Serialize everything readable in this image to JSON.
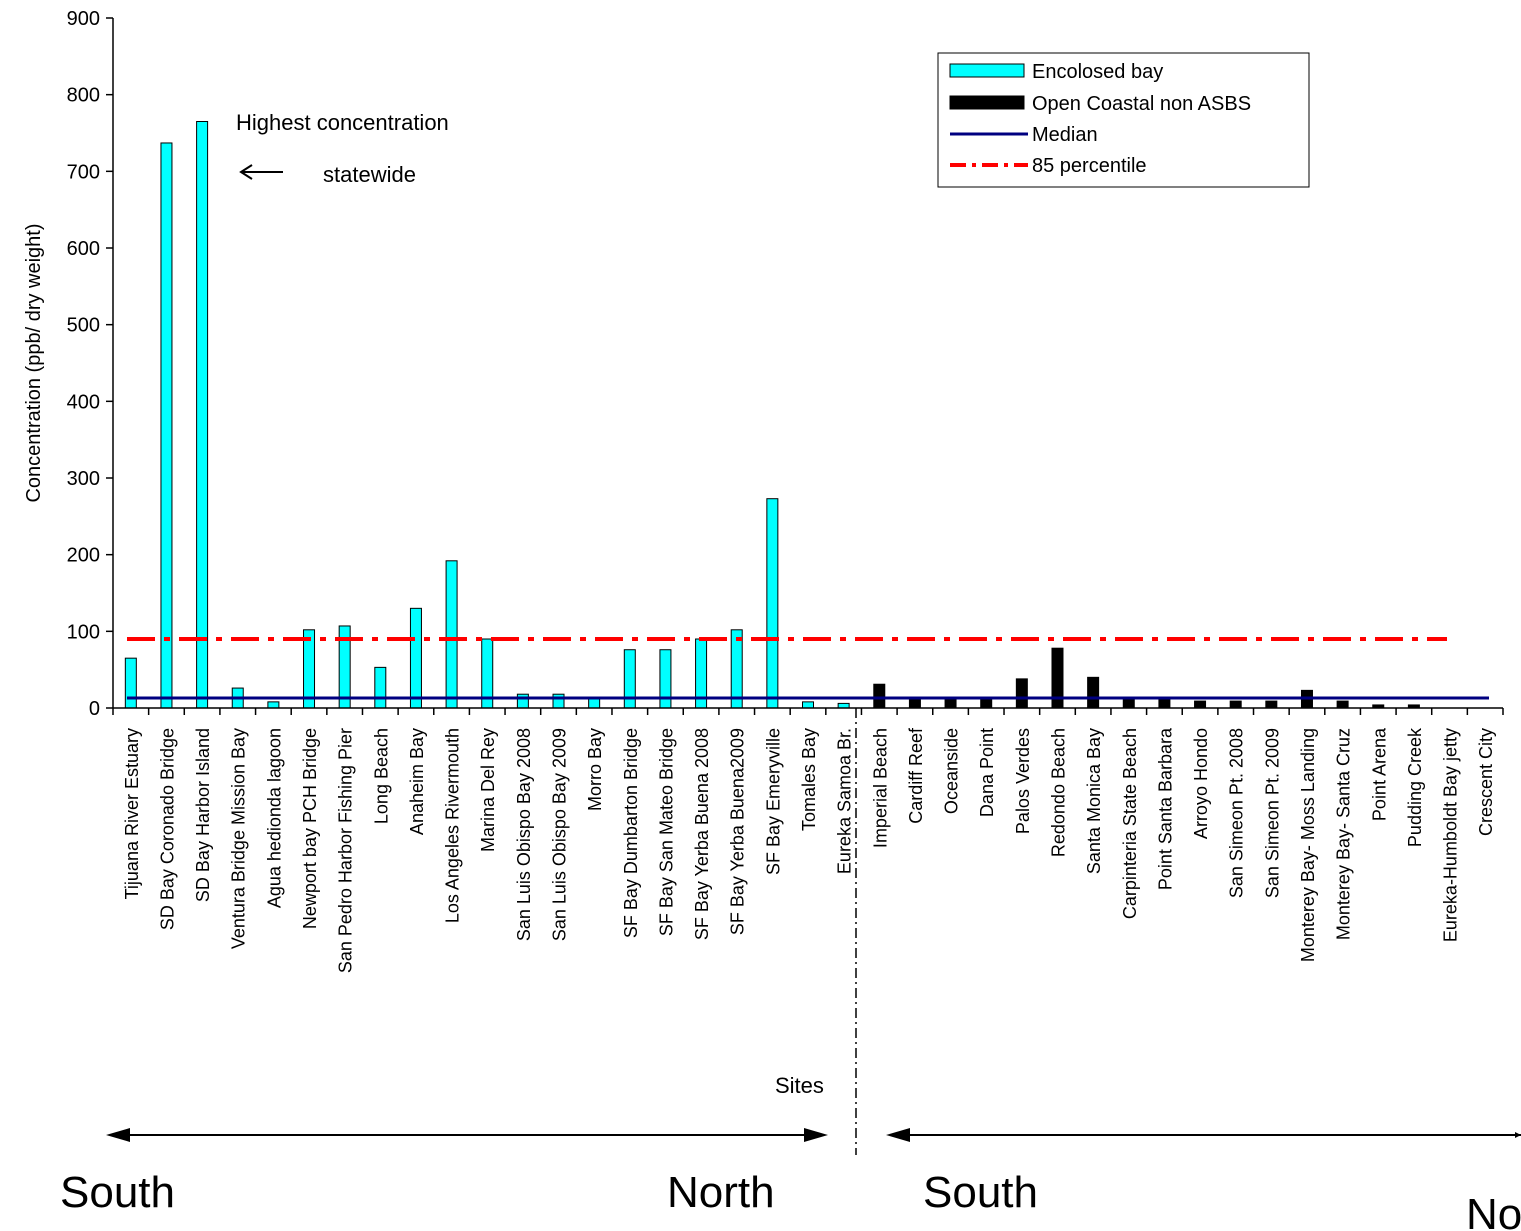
{
  "chart_data": {
    "type": "bar",
    "title": "",
    "ylabel": "Concentration (ppb/ dry weight)",
    "xlabel": "Sites",
    "ylim": [
      0,
      900
    ],
    "y_ticks": [
      0,
      100,
      200,
      300,
      400,
      500,
      600,
      700,
      800,
      900
    ],
    "grid": false,
    "legend_position": "top-right",
    "categories": [
      "Tijuana River Estuary",
      "SD Bay Coronado Bridge",
      "SD Bay Harbor Island",
      "Ventura Bridge Mission Bay",
      "Agua hedionda lagoon",
      "Newport bay PCH Bridge",
      "San Pedro Harbor  Fishing Pier",
      "Long Beach",
      "Anaheim Bay",
      "Los Angeles Rivermouth",
      "Marina Del Rey",
      "San Luis Obispo Bay 2008",
      "San Luis Obispo Bay 2009",
      "Morro Bay",
      "SF Bay Dumbarton Bridge",
      "SF Bay San Mateo Bridge",
      "SF Bay Yerba Buena 2008",
      "SF Bay Yerba Buena2009",
      "SF Bay Emeryville",
      "Tomales Bay",
      "Eureka Samoa Br.",
      "Imperial Beach",
      "Cardiff Reef",
      "Oceanside",
      "Dana Point",
      "Palos Verdes",
      "Redondo Beach",
      "Santa Monica Bay",
      "Carpinteria State Beach",
      "Point Santa Barbara",
      "Arroyo Hondo",
      "San Simeon Pt. 2008",
      "San Simeon Pt. 2009",
      "Monterey Bay- Moss Landing",
      "Monterey Bay- Santa  Cruz",
      "Point Arena",
      "Pudding Creek",
      "Eureka-Humboldt Bay jetty",
      "Crescent City"
    ],
    "series": [
      {
        "name": "Encolosed bay",
        "color": "#00FFFF",
        "values": [
          65,
          737,
          765,
          26,
          8,
          102,
          107,
          53,
          130,
          192,
          90,
          18,
          18,
          12,
          76,
          76,
          90,
          102,
          273,
          8,
          6,
          null,
          null,
          null,
          null,
          null,
          null,
          null,
          null,
          null,
          null,
          null,
          null,
          null,
          null,
          null,
          null,
          null,
          null
        ]
      },
      {
        "name": "Open Coastal non ASBS",
        "color": "#000000",
        "values": [
          null,
          null,
          null,
          null,
          null,
          null,
          null,
          null,
          null,
          null,
          null,
          null,
          null,
          null,
          null,
          null,
          null,
          null,
          null,
          null,
          null,
          31,
          13,
          13,
          13,
          38,
          78,
          40,
          13,
          13,
          9,
          9,
          9,
          23,
          9,
          4,
          4,
          0,
          0
        ]
      }
    ],
    "reference_lines": [
      {
        "name": "Median",
        "value": 13,
        "color": "#000080",
        "style": "solid"
      },
      {
        "name": "85 percentile",
        "value": 90,
        "color": "#FF0000",
        "style": "dash-dot"
      }
    ],
    "annotations": {
      "highest_line1": "Highest concentration",
      "highest_line2": "statewide",
      "sites": "Sites",
      "south_left": "South",
      "north_left": "North",
      "south_right": "South",
      "north_right": "No"
    }
  },
  "legend": {
    "items": [
      {
        "label": "Encolosed bay",
        "color": "#00FFFF"
      },
      {
        "label": "Open Coastal non ASBS",
        "color": "#000000"
      },
      {
        "label": "Median",
        "color": "#000080"
      },
      {
        "label": "85 percentile",
        "color": "#FF0000"
      }
    ]
  }
}
